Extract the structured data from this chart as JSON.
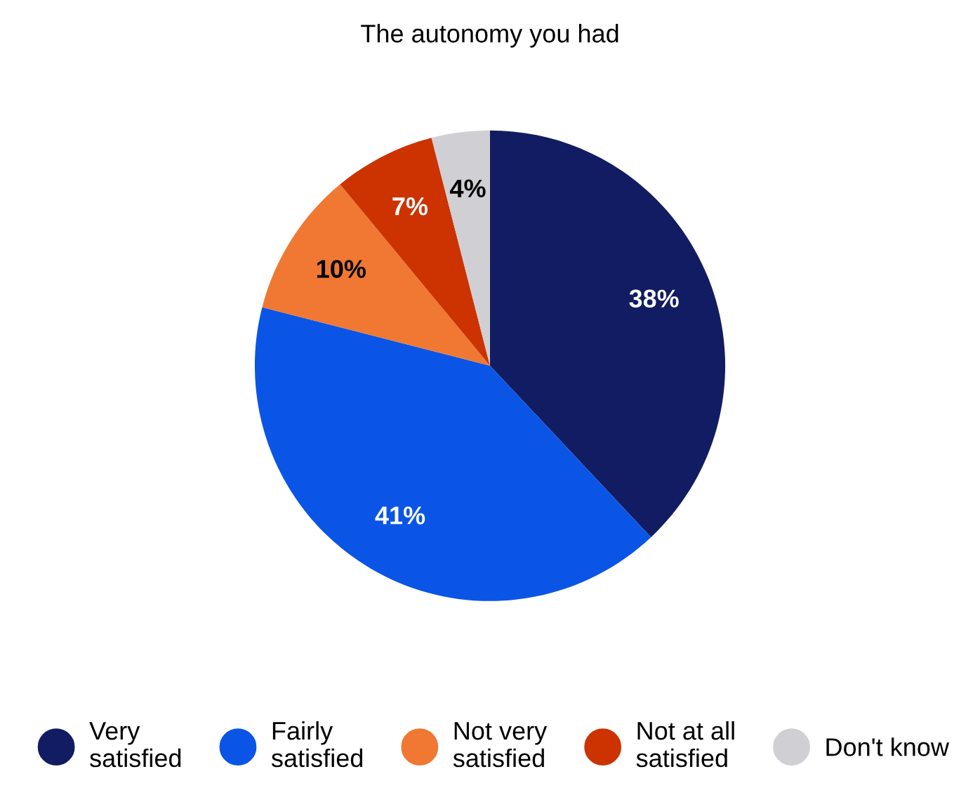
{
  "chart_data": {
    "type": "pie",
    "title": "The autonomy you had",
    "categories": [
      "Very satisfied",
      "Fairly satisfied",
      "Not very satisfied",
      "Not at all satisfied",
      "Don't know"
    ],
    "values": [
      38,
      41,
      10,
      7,
      4
    ],
    "colors": [
      "#111c62",
      "#0b55e6",
      "#f07832",
      "#cc3300",
      "#d0d0d4"
    ],
    "value_labels": [
      "38%",
      "41%",
      "10%",
      "7%",
      "4%"
    ],
    "legend": "bottom"
  }
}
